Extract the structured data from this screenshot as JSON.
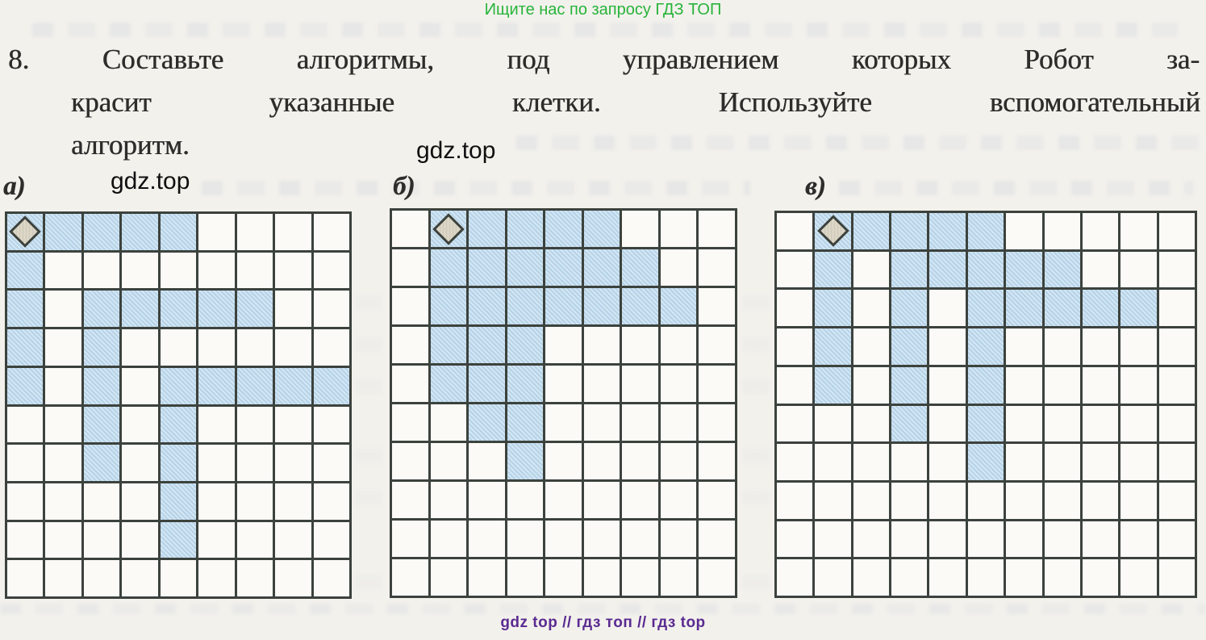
{
  "banners": {
    "top": "Ищите нас по запросу ГДЗ ТОП",
    "bottom": "gdz top  //  гдз топ  //  гдз top"
  },
  "watermark": "gdz.top",
  "problem": {
    "line1": "8. Составьте алгоритмы, под управлением которых Робот за-",
    "line2": "красит указанные клетки. Используйте вспомогательный",
    "line3": "алгоритм."
  },
  "grids": [
    {
      "label": "а)",
      "cols": 9,
      "rows": 10,
      "robot": {
        "row": 1,
        "col": 1
      },
      "blue_cells": [
        [
          1,
          1
        ],
        [
          1,
          2
        ],
        [
          1,
          3
        ],
        [
          1,
          4
        ],
        [
          1,
          5
        ],
        [
          2,
          1
        ],
        [
          3,
          1
        ],
        [
          3,
          3
        ],
        [
          3,
          4
        ],
        [
          3,
          5
        ],
        [
          3,
          6
        ],
        [
          3,
          7
        ],
        [
          4,
          1
        ],
        [
          4,
          3
        ],
        [
          5,
          1
        ],
        [
          5,
          3
        ],
        [
          5,
          5
        ],
        [
          5,
          6
        ],
        [
          5,
          7
        ],
        [
          5,
          8
        ],
        [
          5,
          9
        ],
        [
          6,
          3
        ],
        [
          6,
          5
        ],
        [
          7,
          3
        ],
        [
          7,
          5
        ],
        [
          8,
          5
        ],
        [
          9,
          5
        ]
      ]
    },
    {
      "label": "б)",
      "cols": 9,
      "rows": 10,
      "robot": {
        "row": 1,
        "col": 2
      },
      "blue_cells": [
        [
          1,
          2
        ],
        [
          1,
          3
        ],
        [
          1,
          4
        ],
        [
          1,
          5
        ],
        [
          1,
          6
        ],
        [
          2,
          2
        ],
        [
          2,
          3
        ],
        [
          2,
          4
        ],
        [
          2,
          5
        ],
        [
          2,
          6
        ],
        [
          2,
          7
        ],
        [
          3,
          2
        ],
        [
          3,
          3
        ],
        [
          3,
          4
        ],
        [
          3,
          5
        ],
        [
          3,
          6
        ],
        [
          3,
          7
        ],
        [
          3,
          8
        ],
        [
          4,
          2
        ],
        [
          4,
          3
        ],
        [
          4,
          4
        ],
        [
          5,
          2
        ],
        [
          5,
          3
        ],
        [
          5,
          4
        ],
        [
          6,
          3
        ],
        [
          6,
          4
        ],
        [
          7,
          4
        ]
      ]
    },
    {
      "label": "в)",
      "cols": 11,
      "rows": 10,
      "robot": {
        "row": 1,
        "col": 2
      },
      "blue_cells": [
        [
          1,
          2
        ],
        [
          1,
          3
        ],
        [
          1,
          4
        ],
        [
          1,
          5
        ],
        [
          1,
          6
        ],
        [
          2,
          2
        ],
        [
          2,
          4
        ],
        [
          2,
          5
        ],
        [
          2,
          6
        ],
        [
          2,
          7
        ],
        [
          2,
          8
        ],
        [
          3,
          2
        ],
        [
          3,
          4
        ],
        [
          3,
          6
        ],
        [
          3,
          7
        ],
        [
          3,
          8
        ],
        [
          3,
          9
        ],
        [
          3,
          10
        ],
        [
          4,
          2
        ],
        [
          4,
          4
        ],
        [
          4,
          6
        ],
        [
          5,
          2
        ],
        [
          5,
          4
        ],
        [
          5,
          6
        ],
        [
          6,
          4
        ],
        [
          6,
          6
        ],
        [
          7,
          6
        ]
      ]
    }
  ],
  "colors": {
    "cell_blue": "#bdd9ec",
    "grid_line": "#3c423d",
    "robot_fill": "#ded9c8",
    "banner_green": "#27b43a",
    "banner_purple": "#5a2b91"
  }
}
